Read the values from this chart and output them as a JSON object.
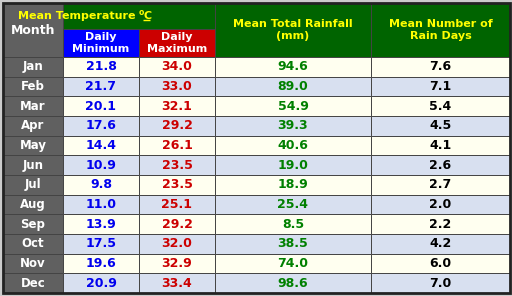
{
  "months": [
    "Jan",
    "Feb",
    "Mar",
    "Apr",
    "May",
    "Jun",
    "Jul",
    "Aug",
    "Sep",
    "Oct",
    "Nov",
    "Dec"
  ],
  "daily_min": [
    21.8,
    21.7,
    20.1,
    17.6,
    14.4,
    10.9,
    9.8,
    11.0,
    13.9,
    17.5,
    19.6,
    20.9
  ],
  "daily_max": [
    34.0,
    33.0,
    32.1,
    29.2,
    26.1,
    23.5,
    23.5,
    25.1,
    29.2,
    32.0,
    32.9,
    33.4
  ],
  "rainfall": [
    94.6,
    89.0,
    54.9,
    39.3,
    40.6,
    19.0,
    18.9,
    25.4,
    8.5,
    38.5,
    74.0,
    98.6
  ],
  "rain_days": [
    7.6,
    7.1,
    5.4,
    4.5,
    4.1,
    2.6,
    2.7,
    2.0,
    2.2,
    4.2,
    6.0,
    7.0
  ],
  "header_bg": "#006400",
  "header_text": "#FFFF00",
  "subheader_min_bg": "#0000FF",
  "subheader_max_bg": "#CC0000",
  "subheader_text": "#FFFFFF",
  "month_col_bg": "#606060",
  "month_col_text": "#FFFFFF",
  "row_bg_odd": "#FFFFF0",
  "row_bg_even": "#D8E0F0",
  "min_text_color": "#0000EE",
  "max_text_color": "#CC0000",
  "rainfall_text_color": "#008000",
  "rain_days_text_color": "#000000",
  "border_color": "#333333",
  "col3_header": "Mean Total Rainfall\n(mm)",
  "col4_header": "Mean Number of\nRain Days"
}
